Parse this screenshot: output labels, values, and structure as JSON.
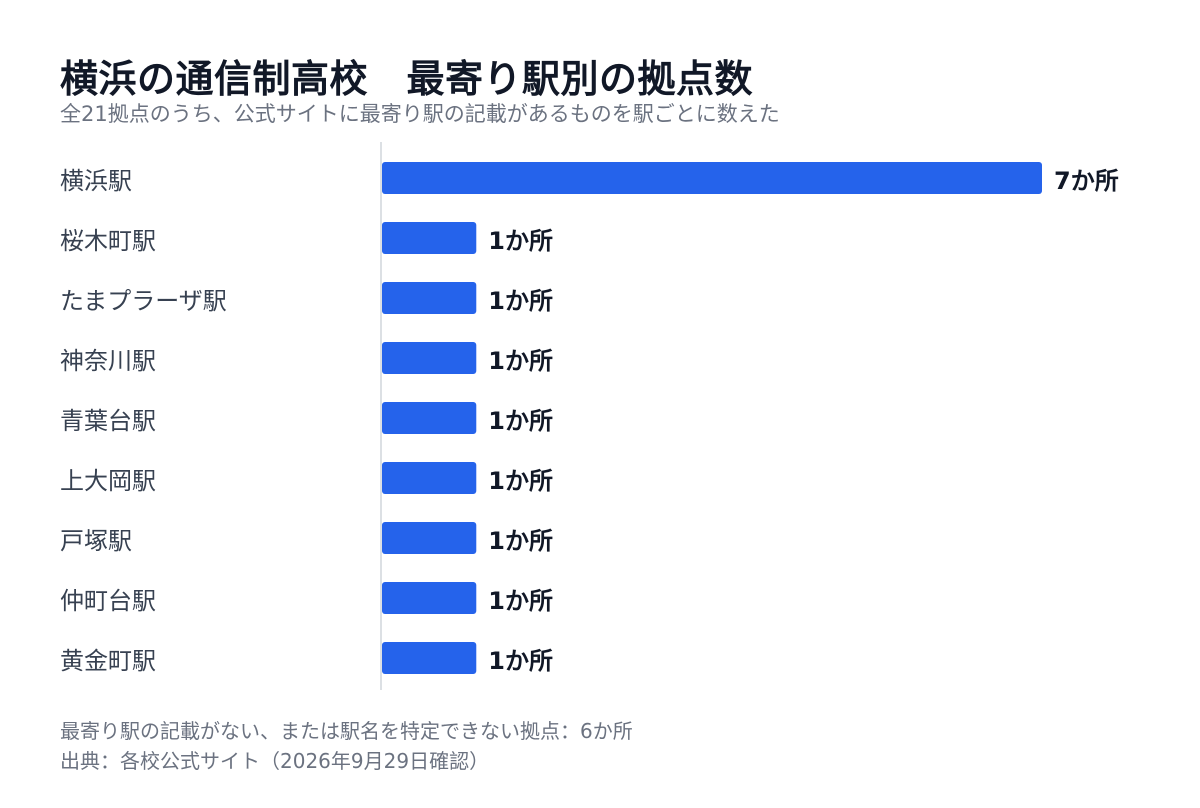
{
  "title": "横浜の通信制高校　最寄り駅別の拠点数",
  "subtitle": "全21拠点のうち、公式サイトに最寄り駅の記載があるものを駅ごとに数えた",
  "footer": {
    "note": "最寄り駅の記載がない、または駅名を特定できない拠点：6か所",
    "source": "出典：各校公式サイト（2026年9月29日確認）"
  },
  "colors": {
    "bar": "#2563eb",
    "axis": "#d1d5db",
    "label": "#374151",
    "value": "#111827"
  },
  "chart_data": {
    "type": "bar",
    "orientation": "horizontal",
    "categories": [
      "横浜駅",
      "桜木町駅",
      "たまプラーザ駅",
      "神奈川駅",
      "青葉台駅",
      "上大岡駅",
      "戸塚駅",
      "仲町台駅",
      "黄金町駅"
    ],
    "values": [
      7,
      1,
      1,
      1,
      1,
      1,
      1,
      1,
      1
    ],
    "value_labels": [
      "7か所",
      "1か所",
      "1か所",
      "1か所",
      "1か所",
      "1か所",
      "1か所",
      "1か所",
      "1か所"
    ],
    "xlim": [
      0,
      7
    ],
    "grid": false,
    "legend": "none"
  }
}
